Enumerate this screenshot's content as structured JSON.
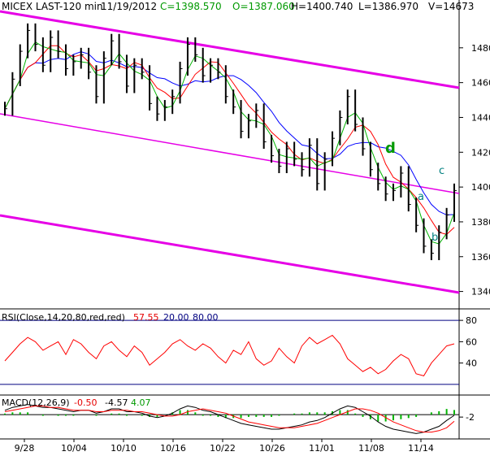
{
  "colors": {
    "price": "#000000",
    "sma_blue": "#0000ff",
    "sma_red": "#ff0000",
    "sma_green": "#00b400",
    "channel": "#e600e6",
    "rsi": "#ff0000",
    "macd": "#000000",
    "macd_signal": "#ff0000",
    "macd_hist": "#00b400",
    "annotation": "#008080",
    "wave_d": "#009900",
    "hdr_close": "#009900",
    "rsi_level": "#000080"
  },
  "header": {
    "symbol": "MICEX LAST-120 min",
    "date": "11/19/2012",
    "close": "C=1398.570",
    "open": "O=1387.060",
    "high": "H=1400.740",
    "low": "L=1386.970",
    "volume": "V=14673"
  },
  "rsi_header": {
    "label": "RSI(Close,14,20,80,red,red)",
    "value": "57.55",
    "low": "20.00",
    "high": "80.00"
  },
  "macd_header": {
    "label": "MACD(12,26,9)",
    "macd": "-0.50",
    "signal": "-4.57",
    "hist": "4.07"
  },
  "chart_data": [
    {
      "type": "line",
      "title": "MICEX LAST-120 min",
      "ylim": [
        1330,
        1500
      ],
      "y_ticks": [
        1340,
        1360,
        1380,
        1400,
        1420,
        1440,
        1460,
        1480
      ],
      "x_tick_labels": [
        "9/28",
        "10/04",
        "10/10",
        "10/16",
        "10/22",
        "10/26",
        "11/01",
        "11/08",
        "11/14"
      ],
      "series": [
        {
          "values": [
            1445,
            1462,
            1478,
            1490,
            1482,
            1470,
            1486,
            1478,
            1468,
            1472,
            1476,
            1466,
            1452,
            1474,
            1484,
            1472,
            1458,
            1470,
            1466,
            1448,
            1442,
            1446,
            1452,
            1468,
            1482,
            1476,
            1464,
            1470,
            1466,
            1452,
            1446,
            1432,
            1438,
            1444,
            1426,
            1418,
            1412,
            1422,
            1416,
            1410,
            1424,
            1402,
            1416,
            1428,
            1440,
            1452,
            1436,
            1422,
            1410,
            1402,
            1396,
            1398,
            1408,
            1390,
            1378,
            1366,
            1362,
            1374,
            1384,
            1398
          ]
        }
      ],
      "moving_averages": [
        "blue",
        "red",
        "green"
      ],
      "channel_lines": [
        "upper",
        "middle",
        "lower"
      ],
      "annotations": [
        "d",
        "a",
        "b",
        "c"
      ]
    },
    {
      "type": "line",
      "name": "RSI",
      "ylim": [
        20,
        80
      ],
      "y_ticks": [
        40,
        60,
        80
      ],
      "levels": [
        20,
        80
      ],
      "values": [
        42,
        50,
        58,
        64,
        60,
        52,
        56,
        60,
        48,
        62,
        58,
        50,
        44,
        56,
        60,
        52,
        46,
        56,
        50,
        38,
        44,
        50,
        58,
        62,
        56,
        52,
        58,
        54,
        46,
        40,
        52,
        48,
        60,
        44,
        38,
        42,
        54,
        46,
        40,
        56,
        64,
        58,
        62,
        66,
        58,
        44,
        38,
        32,
        36,
        30,
        34,
        42,
        48,
        44,
        30,
        28,
        40,
        48,
        56,
        58
      ]
    },
    {
      "type": "bar",
      "name": "MACD",
      "y_ticks": [
        -2
      ],
      "macd": [
        3,
        5,
        6,
        7,
        6,
        5,
        5,
        4,
        3,
        2,
        3,
        3,
        1,
        2,
        4,
        4,
        2,
        2,
        1,
        -1,
        -2,
        -1,
        1,
        4,
        6,
        5,
        3,
        2,
        0,
        -2,
        -4,
        -6,
        -7,
        -8,
        -9,
        -10,
        -10,
        -9,
        -8,
        -7,
        -5,
        -4,
        -2,
        1,
        4,
        6,
        5,
        2,
        -1,
        -5,
        -8,
        -10,
        -11,
        -12,
        -13,
        -12,
        -10,
        -8,
        -4,
        -0.5
      ],
      "signal": [
        2,
        3,
        4,
        5,
        6,
        6,
        5,
        5,
        4,
        3,
        3,
        3,
        2,
        2,
        3,
        3,
        3,
        2,
        2,
        1,
        0,
        -1,
        -1,
        0,
        2,
        3,
        4,
        3,
        2,
        1,
        -1,
        -3,
        -5,
        -6,
        -7,
        -8,
        -9,
        -9,
        -9,
        -8,
        -7,
        -6,
        -4,
        -2,
        0,
        2,
        4,
        4,
        3,
        1,
        -2,
        -5,
        -7,
        -9,
        -11,
        -12,
        -12,
        -11,
        -9,
        -4.57
      ]
    }
  ]
}
